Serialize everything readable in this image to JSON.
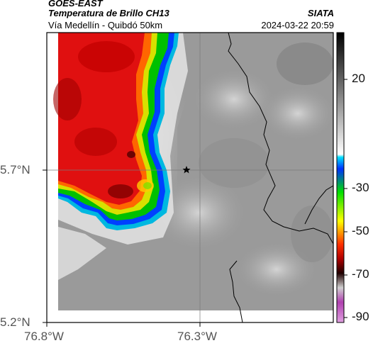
{
  "header": {
    "line1": "GOES-EAST",
    "line2": "Temperatura de Brillo CH13",
    "line3": "Vía Medellín - Quibdó 50km",
    "org": "SIATA",
    "datetime": "2024-03-22 20:59"
  },
  "map": {
    "lat_ticks": [
      "5.7°N",
      "5.2°N"
    ],
    "lon_ticks": [
      "76.8°W",
      "76.3°W"
    ],
    "marker": "star-marker"
  },
  "colorbar": {
    "ticks": [
      "20",
      "-30",
      "-50",
      "-70",
      "-90"
    ]
  },
  "colors": {
    "cold_red": "#e01010",
    "dark_red": "#7a0000",
    "yellow": "#ffff00",
    "green": "#00d000",
    "cyan": "#00c8e8",
    "blue": "#0040ff"
  }
}
